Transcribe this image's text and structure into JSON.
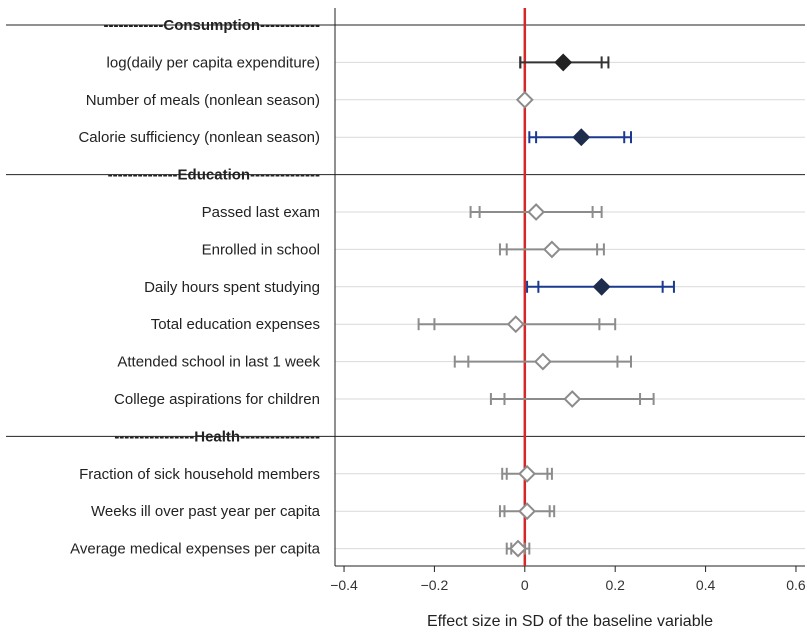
{
  "chart_data": {
    "type": "forest",
    "xlabel": "Effect size in SD of the baseline variable",
    "xlim": [
      -0.42,
      0.62
    ],
    "xticks": [
      -0.4,
      -0.2,
      0,
      0.2,
      0.4,
      0.6
    ],
    "xtick_labels": [
      "−0.4",
      "−0.2",
      "0",
      "0.2",
      "0.4",
      "0.6"
    ],
    "reference_line": {
      "x": 0,
      "color": "#d62728"
    },
    "colors": {
      "significant_90": "#333333",
      "significant_95": "#1a3a8f",
      "not_significant": "#8c8c8c"
    },
    "rows": [
      {
        "kind": "section",
        "label": "------------Consumption------------"
      },
      {
        "kind": "item",
        "label": "log(daily per capita expenditure)",
        "estimate": 0.085,
        "ci90": [
          -0.01,
          0.17
        ],
        "ci95": [
          -0.01,
          0.185
        ],
        "style": "significant_90"
      },
      {
        "kind": "item",
        "label": "Number of meals (nonlean season)",
        "estimate": 0.0,
        "ci90": [
          0.0,
          0.0
        ],
        "ci95": [
          0.0,
          0.0
        ],
        "style": "not_significant"
      },
      {
        "kind": "item",
        "label": "Calorie sufficiency (nonlean season)",
        "estimate": 0.125,
        "ci90": [
          0.025,
          0.22
        ],
        "ci95": [
          0.01,
          0.235
        ],
        "style": "significant_95"
      },
      {
        "kind": "section",
        "label": "--------------Education--------------"
      },
      {
        "kind": "item",
        "label": "Passed last exam",
        "estimate": 0.025,
        "ci90": [
          -0.1,
          0.15
        ],
        "ci95": [
          -0.12,
          0.17
        ],
        "style": "not_significant"
      },
      {
        "kind": "item",
        "label": "Enrolled in school",
        "estimate": 0.06,
        "ci90": [
          -0.04,
          0.16
        ],
        "ci95": [
          -0.055,
          0.175
        ],
        "style": "not_significant"
      },
      {
        "kind": "item",
        "label": "Daily hours spent studying",
        "estimate": 0.17,
        "ci90": [
          0.03,
          0.305
        ],
        "ci95": [
          0.005,
          0.33
        ],
        "style": "significant_95"
      },
      {
        "kind": "item",
        "label": "Total education expenses",
        "estimate": -0.02,
        "ci90": [
          -0.2,
          0.165
        ],
        "ci95": [
          -0.235,
          0.2
        ],
        "style": "not_significant"
      },
      {
        "kind": "item",
        "label": "Attended school in last 1 week",
        "estimate": 0.04,
        "ci90": [
          -0.125,
          0.205
        ],
        "ci95": [
          -0.155,
          0.235
        ],
        "style": "not_significant"
      },
      {
        "kind": "item",
        "label": "College aspirations for children",
        "estimate": 0.105,
        "ci90": [
          -0.045,
          0.255
        ],
        "ci95": [
          -0.075,
          0.285
        ],
        "style": "not_significant"
      },
      {
        "kind": "section",
        "label": "----------------Health----------------"
      },
      {
        "kind": "item",
        "label": "Fraction of sick household members",
        "estimate": 0.005,
        "ci90": [
          -0.04,
          0.05
        ],
        "ci95": [
          -0.05,
          0.06
        ],
        "style": "not_significant"
      },
      {
        "kind": "item",
        "label": "Weeks ill over past year per capita",
        "estimate": 0.005,
        "ci90": [
          -0.045,
          0.055
        ],
        "ci95": [
          -0.055,
          0.065
        ],
        "style": "not_significant"
      },
      {
        "kind": "item",
        "label": "Average medical expenses per capita",
        "estimate": -0.015,
        "ci90": [
          -0.03,
          0.0
        ],
        "ci95": [
          -0.04,
          0.01
        ],
        "style": "not_significant"
      }
    ]
  }
}
